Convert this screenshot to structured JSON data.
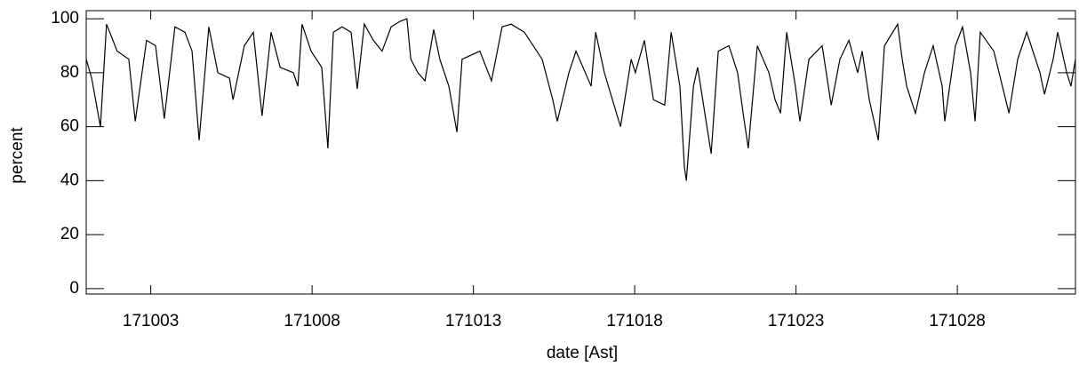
{
  "chart_data": {
    "type": "line",
    "xlabel": "date [Ast]",
    "ylabel": "percent",
    "x": [
      171001.0,
      171001.17,
      171001.44,
      171001.63,
      171001.96,
      171002.32,
      171002.52,
      171002.87,
      171003.15,
      171003.42,
      171003.75,
      171004.06,
      171004.28,
      171004.5,
      171004.8,
      171005.08,
      171005.44,
      171005.55,
      171005.9,
      171006.18,
      171006.45,
      171006.73,
      171007.01,
      171007.42,
      171007.56,
      171007.69,
      171007.97,
      171008.3,
      171008.49,
      171008.66,
      171008.93,
      171009.21,
      171009.4,
      171009.62,
      171009.9,
      171010.17,
      171010.45,
      171010.72,
      171010.94,
      171011.06,
      171011.28,
      171011.5,
      171011.77,
      171011.96,
      171012.24,
      171012.49,
      171012.65,
      171013.2,
      171013.56,
      171013.89,
      171014.17,
      171014.58,
      171015.13,
      171015.46,
      171015.6,
      171015.96,
      171016.18,
      171016.65,
      171016.79,
      171017.06,
      171017.56,
      171017.89,
      171018.02,
      171018.3,
      171018.58,
      171018.93,
      171019.13,
      171019.4,
      171019.54,
      171019.6,
      171019.82,
      171019.95,
      171020.37,
      171020.59,
      171020.92,
      171021.19,
      171021.36,
      171021.52,
      171021.8,
      171022.16,
      171022.35,
      171022.52,
      171022.71,
      171022.98,
      171023.12,
      171023.4,
      171023.81,
      171024.09,
      171024.36,
      171024.64,
      171024.91,
      171025.05,
      171025.27,
      171025.55,
      171025.74,
      171026.15,
      171026.29,
      171026.43,
      171026.7,
      171026.98,
      171027.25,
      171027.53,
      171027.61,
      171027.94,
      171028.16,
      171028.41,
      171028.55,
      171028.71,
      171029.13,
      171029.6,
      171029.87,
      171030.15,
      171030.56,
      171030.7,
      171030.97,
      171031.11,
      171031.39,
      171031.52,
      171031.66
    ],
    "series": [
      {
        "color": "#000000",
        "values": [
          85,
          78,
          60,
          98,
          88,
          85,
          62,
          92,
          90,
          63,
          97,
          95,
          88,
          55,
          97,
          80,
          78,
          70,
          90,
          95,
          64,
          95,
          82,
          80,
          75,
          98,
          88,
          82,
          52,
          95,
          97,
          95,
          74,
          98,
          92,
          88,
          97,
          99,
          100,
          85,
          80,
          77,
          96,
          85,
          75,
          58,
          85,
          88,
          77,
          97,
          98,
          95,
          85,
          70,
          62,
          80,
          88,
          75,
          95,
          80,
          60,
          85,
          80,
          92,
          70,
          68,
          95,
          75,
          45,
          40,
          75,
          82,
          50,
          88,
          90,
          80,
          65,
          52,
          90,
          80,
          70,
          65,
          95,
          75,
          62,
          85,
          90,
          68,
          85,
          92,
          80,
          88,
          70,
          55,
          90,
          98,
          85,
          75,
          65,
          80,
          90,
          75,
          62,
          90,
          97,
          80,
          62,
          95,
          88,
          65,
          85,
          95,
          80,
          72,
          85,
          95,
          80,
          75,
          85
        ]
      }
    ],
    "xlim": [
      171001,
      171031.66
    ],
    "xticks": [
      171003,
      171008,
      171013,
      171018,
      171023,
      171028
    ],
    "ylim": [
      -2,
      103
    ],
    "yticks": [
      0,
      20,
      40,
      60,
      80,
      100
    ]
  }
}
